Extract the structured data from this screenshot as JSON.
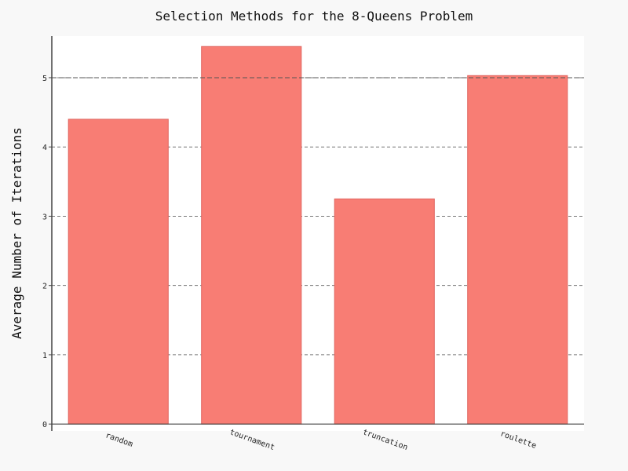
{
  "chart_data": {
    "type": "bar",
    "title": "Selection Methods for the 8-Queens Problem",
    "xlabel": "",
    "ylabel": "Average Number of Iterations",
    "categories": [
      "random",
      "tournament",
      "truncation",
      "roulette"
    ],
    "values": [
      4.4,
      5.45,
      3.25,
      5.03
    ],
    "ylim": [
      -0.1,
      5.6
    ],
    "yticks": [
      0,
      1,
      2,
      3,
      4,
      5
    ],
    "grid": true,
    "legend": "none",
    "colors": {
      "bar_fill": "#f87d74",
      "bar_edge": "#e06660",
      "plot_bg": "#ffffff",
      "figure_bg": "#f8f8f8",
      "grid": "#777777",
      "axis": "#444444"
    }
  }
}
